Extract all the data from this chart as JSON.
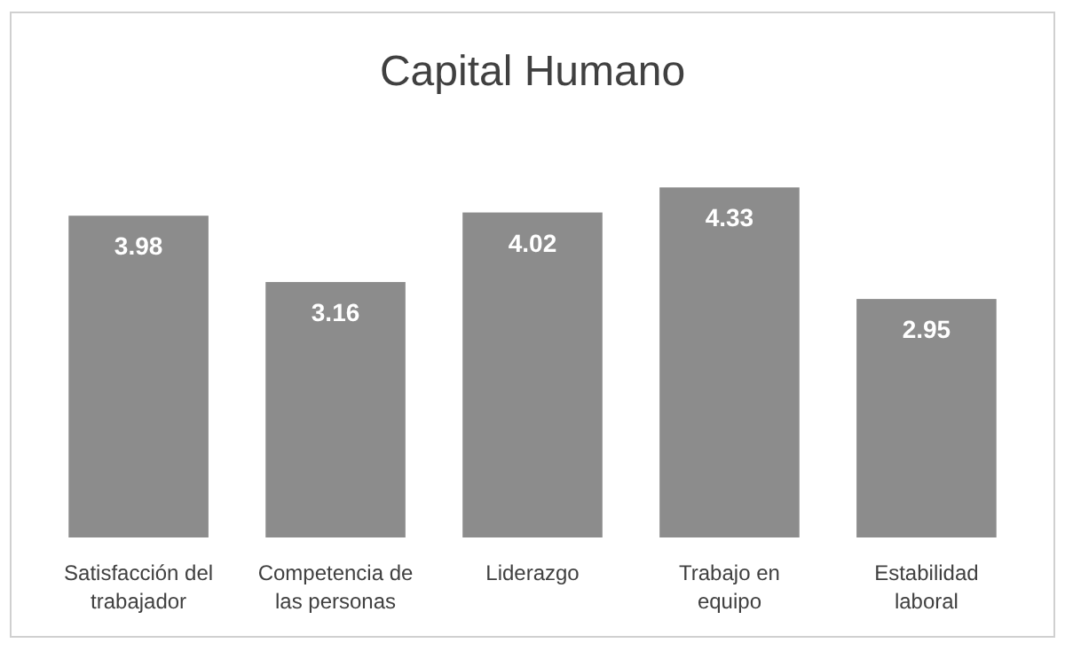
{
  "chart_data": {
    "type": "bar",
    "title": "Capital Humano",
    "categories": [
      "Satisfacción del trabajador",
      "Competencia de las personas",
      "Liderazgo",
      "Trabajo en equipo",
      "Estabilidad laboral"
    ],
    "values": [
      3.98,
      3.16,
      4.02,
      4.33,
      2.95
    ],
    "color": "#8c8c8c",
    "data_labels": true,
    "grid": false
  }
}
